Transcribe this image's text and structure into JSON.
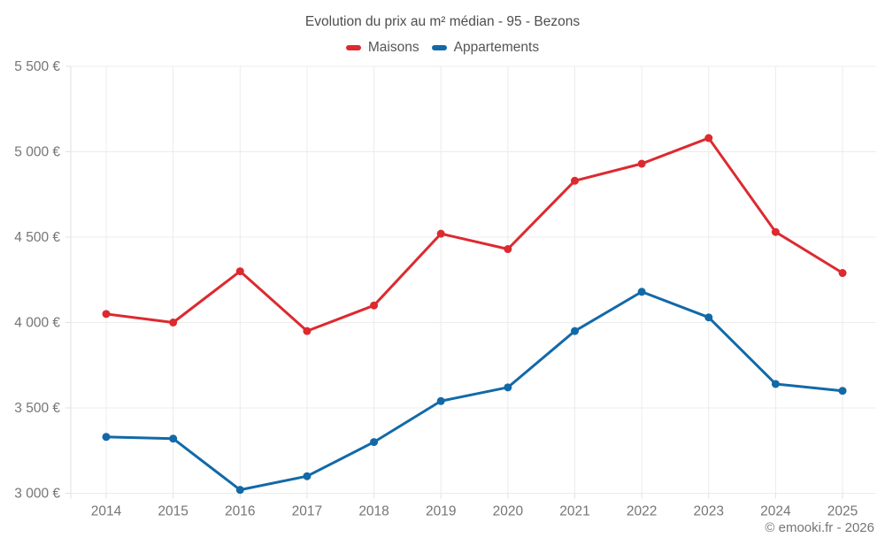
{
  "chart_data": {
    "type": "line",
    "title": "Evolution du prix au m² médian - 95 - Bezons",
    "categories": [
      "2014",
      "2015",
      "2016",
      "2017",
      "2018",
      "2019",
      "2020",
      "2021",
      "2022",
      "2023",
      "2024",
      "2025"
    ],
    "series": [
      {
        "name": "Maisons",
        "color": "#dc2a2f",
        "values": [
          4050,
          4000,
          4300,
          3950,
          4100,
          4520,
          4430,
          4830,
          4930,
          5080,
          4530,
          4290
        ]
      },
      {
        "name": "Appartements",
        "color": "#1269a8",
        "values": [
          3330,
          3320,
          3020,
          3100,
          3300,
          3540,
          3620,
          3950,
          4180,
          4030,
          3640,
          3600
        ]
      }
    ],
    "y_ticks": [
      {
        "value": 5500,
        "label": "5 500 €"
      },
      {
        "value": 5000,
        "label": "5 000 €"
      },
      {
        "value": 4500,
        "label": "4 500 €"
      },
      {
        "value": 4000,
        "label": "4 000 €"
      },
      {
        "value": 3500,
        "label": "3 500 €"
      },
      {
        "value": 3000,
        "label": "3 000 €"
      }
    ],
    "ylim": [
      3000,
      5500
    ],
    "grid": true,
    "legend_position": "top",
    "colors": {
      "grid": "#ececec",
      "axis": "#e0e0e0",
      "tick_label": "#757575",
      "title_text": "#4d4d4d"
    }
  },
  "footer": {
    "copyright": "© emooki.fr - 2026"
  }
}
